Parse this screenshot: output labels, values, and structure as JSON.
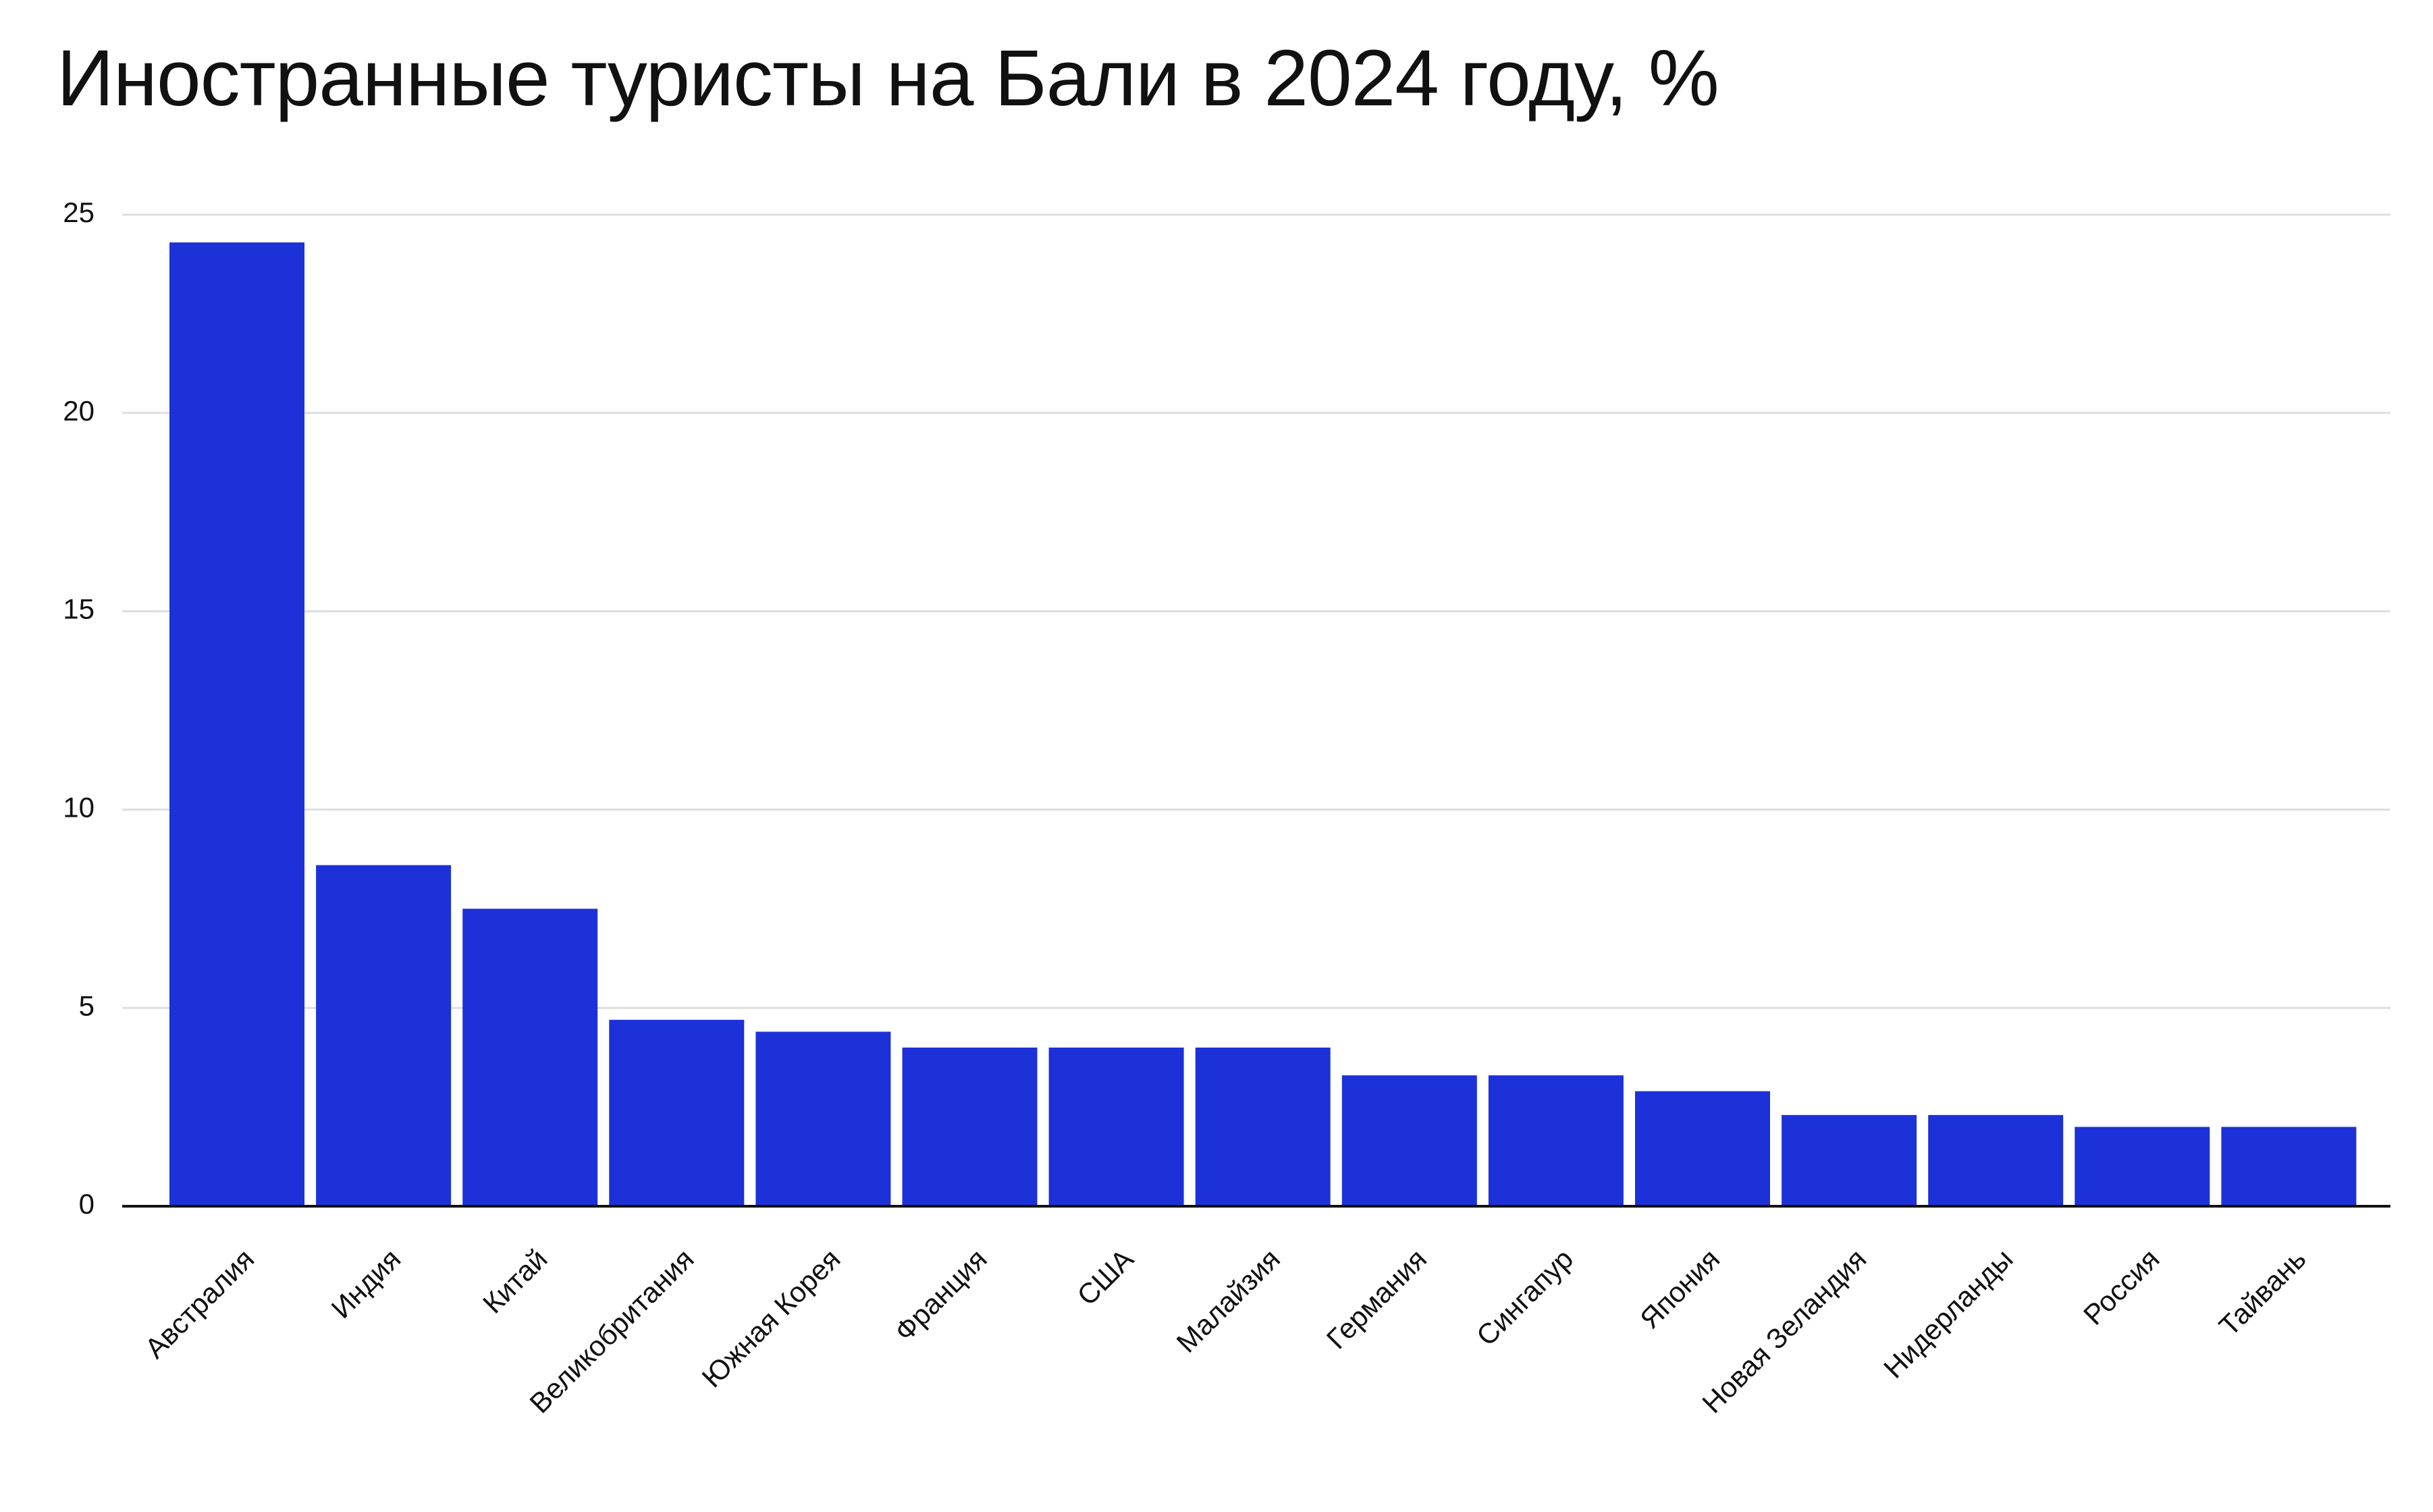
{
  "chart_data": {
    "type": "bar",
    "title": "Иностранные туристы на Бали в 2024 году, %",
    "xlabel": "",
    "ylabel": "",
    "categories": [
      "Австралия",
      "Индия",
      "Китай",
      "Великобритания",
      "Южная Корея",
      "Франция",
      "США",
      "Малайзия",
      "Германия",
      "Сингапур",
      "Япония",
      "Новая Зеландия",
      "Нидерланды",
      "Россия",
      "Тайвань"
    ],
    "values": [
      24.3,
      8.6,
      7.5,
      4.7,
      4.4,
      4.0,
      4.0,
      4.0,
      3.3,
      3.3,
      2.9,
      2.3,
      2.3,
      2.0,
      2.0
    ],
    "ylim": [
      0,
      25
    ],
    "yticks": [
      "0",
      "5",
      "10",
      "15",
      "20",
      "25"
    ],
    "grid": true,
    "legend": "none",
    "colors": {
      "bar": "#1c31d8",
      "grid": "#dedede",
      "axis": "#111111"
    }
  }
}
